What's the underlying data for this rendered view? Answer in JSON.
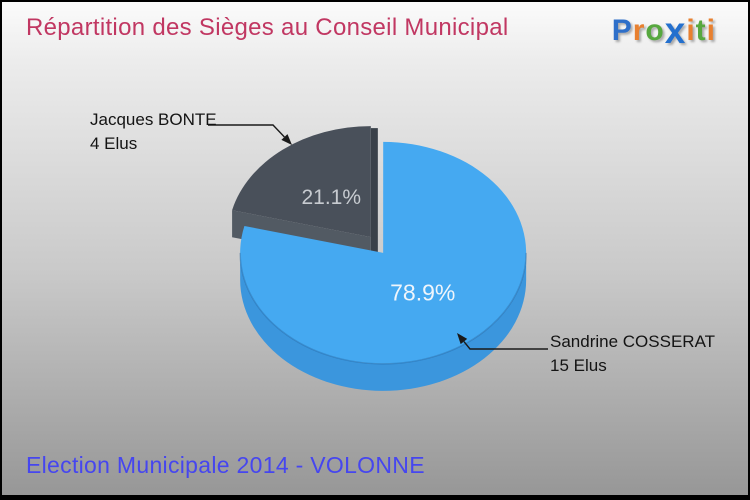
{
  "page": {
    "title": "Répartition des Sièges au Conseil Municipal",
    "footer": "Election Municipale 2014 - VOLONNE",
    "title_color": "#C13762",
    "footer_color": "#4646EF"
  },
  "logo": {
    "name": "Proxiti",
    "letters": [
      {
        "ch": "P",
        "color": "#2E6FC9"
      },
      {
        "ch": "r",
        "color": "#E8802F"
      },
      {
        "ch": "o",
        "color": "#57A83F"
      },
      {
        "ch": "x",
        "color": "#2470CE",
        "big": true
      },
      {
        "ch": "i",
        "color": "#E8802F"
      },
      {
        "ch": "t",
        "color": "#57A83F"
      },
      {
        "ch": "i",
        "color": "#E8802F"
      }
    ]
  },
  "chart_data": {
    "type": "pie",
    "style": "3d-exploded",
    "title": "Répartition des Sièges au Conseil Municipal",
    "subtitle": "Election Municipale 2014 - VOLONNE",
    "unit": "Elus (sièges)",
    "total_seats": 19,
    "legend_position": "callouts",
    "slices": [
      {
        "label": "Sandrine COSSERAT",
        "seats": 15,
        "seats_label": "15 Elus",
        "pct": 78.9,
        "pct_label": "78.9%",
        "color": "#45A9F1",
        "side_color": "#3B96DD",
        "pct_text_color": "#EFF5FB"
      },
      {
        "label": "Jacques BONTE",
        "seats": 4,
        "seats_label": "4 Elus",
        "pct": 21.1,
        "pct_label": "21.1%",
        "color": "#49505A",
        "side_color": "#525A63",
        "pct_text_color": "#C7CBD0"
      }
    ]
  }
}
